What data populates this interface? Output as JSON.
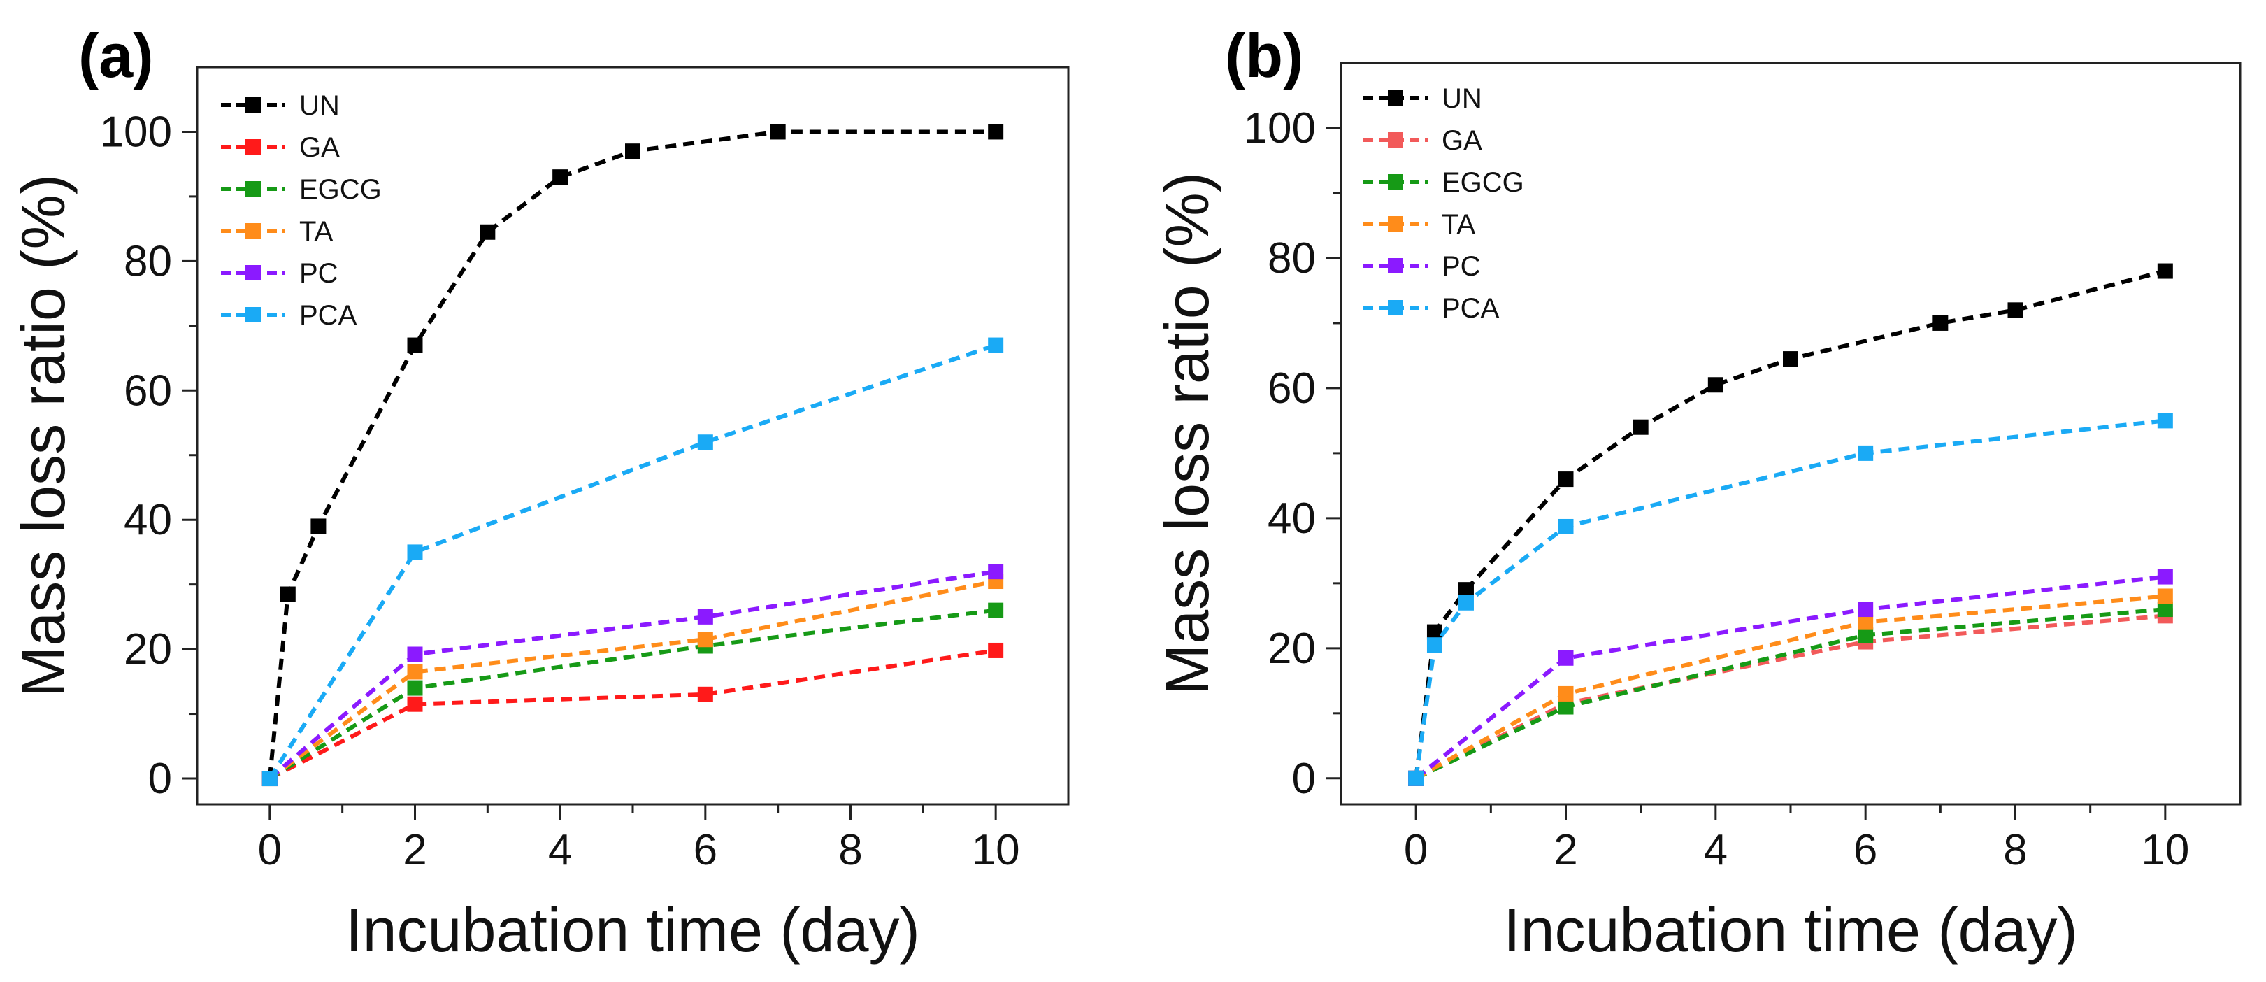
{
  "chart_data": [
    {
      "type": "line",
      "panel_label": "(a)",
      "xlabel": "Incubation time (day)",
      "ylabel": "Mass loss ratio (%)",
      "xlim": [
        -1,
        11
      ],
      "ylim": [
        -4,
        110
      ],
      "xticks": [
        0,
        2,
        4,
        6,
        8,
        10
      ],
      "yticks": [
        0,
        20,
        40,
        60,
        80,
        100
      ],
      "legend_position": "top-left",
      "series": [
        {
          "name": "UN",
          "color": "#000000",
          "x": [
            0,
            0.25,
            0.67,
            2,
            3,
            4,
            5,
            7,
            10
          ],
          "y": [
            0,
            28.5,
            39,
            67,
            84.5,
            93,
            97,
            100,
            100
          ]
        },
        {
          "name": "GA",
          "color": "#ff1a1a",
          "x": [
            0,
            2,
            6,
            10
          ],
          "y": [
            0,
            11.5,
            13,
            19.8
          ]
        },
        {
          "name": "EGCG",
          "color": "#169a16",
          "x": [
            0,
            2,
            6,
            10
          ],
          "y": [
            0,
            14,
            20.5,
            26
          ]
        },
        {
          "name": "TA",
          "color": "#ff8c1a",
          "x": [
            0,
            2,
            6,
            10
          ],
          "y": [
            0,
            16.5,
            21.5,
            30.5
          ]
        },
        {
          "name": "PC",
          "color": "#8b1aff",
          "x": [
            0,
            2,
            6,
            10
          ],
          "y": [
            0,
            19.2,
            25,
            32
          ]
        },
        {
          "name": "PCA",
          "color": "#1aaaf5",
          "x": [
            0,
            2,
            6,
            10
          ],
          "y": [
            0,
            35,
            52,
            67
          ]
        }
      ]
    },
    {
      "type": "line",
      "panel_label": "(b)",
      "xlabel": "Incubation time (day)",
      "ylabel": "Mass loss ratio (%)",
      "xlim": [
        -1,
        11
      ],
      "ylim": [
        -4,
        110
      ],
      "xticks": [
        0,
        2,
        4,
        6,
        8,
        10
      ],
      "yticks": [
        0,
        20,
        40,
        60,
        80,
        100
      ],
      "legend_position": "top-left",
      "series": [
        {
          "name": "UN",
          "color": "#000000",
          "x": [
            0,
            0.25,
            0.67,
            2,
            3,
            4,
            5,
            7,
            8,
            10
          ],
          "y": [
            0,
            22.5,
            29,
            46,
            54,
            60.5,
            64.5,
            70,
            72,
            78
          ]
        },
        {
          "name": "GA",
          "color": "#f25a5a",
          "x": [
            0,
            2,
            6,
            10
          ],
          "y": [
            0,
            11.5,
            21,
            25
          ]
        },
        {
          "name": "EGCG",
          "color": "#169a16",
          "x": [
            0,
            2,
            6,
            10
          ],
          "y": [
            0,
            11,
            22,
            26
          ]
        },
        {
          "name": "TA",
          "color": "#ff8c1a",
          "x": [
            0,
            2,
            6,
            10
          ],
          "y": [
            0,
            13,
            24,
            28
          ]
        },
        {
          "name": "PC",
          "color": "#8b1aff",
          "x": [
            0,
            2,
            6,
            10
          ],
          "y": [
            0,
            18.5,
            26,
            31
          ]
        },
        {
          "name": "PCA",
          "color": "#1aaaf5",
          "x": [
            0,
            0.25,
            0.67,
            2,
            6,
            10
          ],
          "y": [
            0,
            20.5,
            27,
            38.7,
            50,
            55
          ]
        }
      ]
    }
  ]
}
